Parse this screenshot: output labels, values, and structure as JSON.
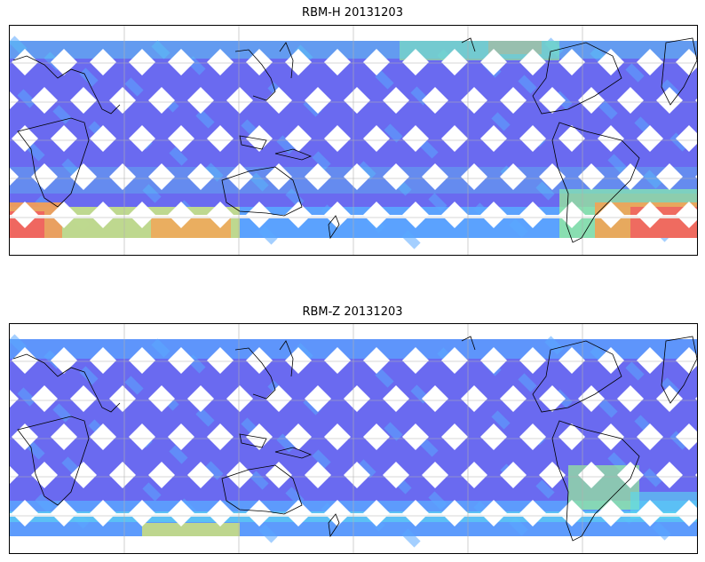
{
  "panels": [
    {
      "title": "RBM-H 20131203",
      "colors": {
        "swath": "#6a6af0",
        "swath_light": "#5aa8ff",
        "cyan": "#5ad8f0",
        "green": "#9cf890",
        "yellow": "#e8f060",
        "orange": "#f8a050",
        "red": "#f06060"
      }
    },
    {
      "title": "RBM-Z 20131203",
      "colors": {
        "swath": "#6a6af0",
        "swath_light": "#5aa8ff",
        "cyan": "#5ad8f0",
        "green": "#9cf890",
        "yellow": "#e8f060"
      }
    }
  ],
  "map": {
    "projection": "plate-carree",
    "central_longitude": "Pacific-centred",
    "gridlines": true,
    "coastlines": true
  }
}
